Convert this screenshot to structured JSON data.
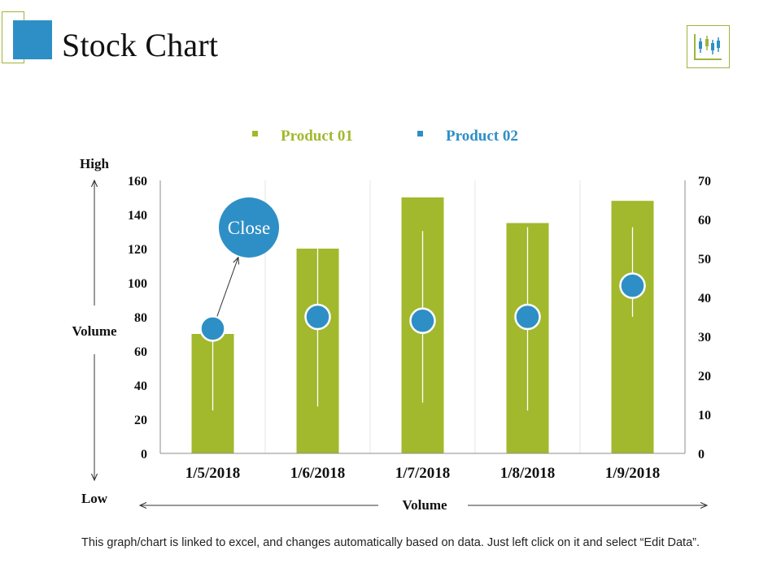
{
  "page": {
    "title": "Stock Chart",
    "footer_note": "This graph/chart is linked to excel, and changes automatically based on data. Just left click on it and select “Edit Data”.",
    "icon": "candlestick-chart-icon"
  },
  "colors": {
    "product01": "#a2b82d",
    "product02": "#2e8fc6",
    "accent_outline": "#a0b43a",
    "text": "#111111"
  },
  "chart_data": {
    "type": "bar",
    "categories": [
      "1/5/2018",
      "1/6/2018",
      "1/7/2018",
      "1/8/2018",
      "1/9/2018"
    ],
    "series": [
      {
        "name": "Product 01",
        "axis": "left",
        "values": [
          70,
          120,
          150,
          135,
          148
        ]
      },
      {
        "name": "Product 02",
        "axis": "right",
        "kind": "stock",
        "high": [
          32,
          56,
          57,
          58,
          58
        ],
        "low": [
          11,
          12,
          13,
          11,
          35
        ],
        "close": [
          32,
          35,
          34,
          35,
          43
        ]
      }
    ],
    "legend": [
      "Product 01",
      "Product 02"
    ],
    "legend_position": "top",
    "left_axis": {
      "min": 0,
      "max": 160,
      "step": 20,
      "ticks": [
        "0",
        "20",
        "40",
        "60",
        "80",
        "100",
        "120",
        "140",
        "160"
      ]
    },
    "right_axis": {
      "min": 0,
      "max": 70,
      "step": 10,
      "ticks": [
        "0",
        "10",
        "20",
        "30",
        "40",
        "50",
        "60",
        "70"
      ]
    },
    "ylabel": "Volume",
    "ylabel_top": "High",
    "ylabel_bottom": "Low",
    "xlabel": "Volume",
    "annotation": "Close",
    "annotation_target_index": 0,
    "vertical_grid": true
  }
}
